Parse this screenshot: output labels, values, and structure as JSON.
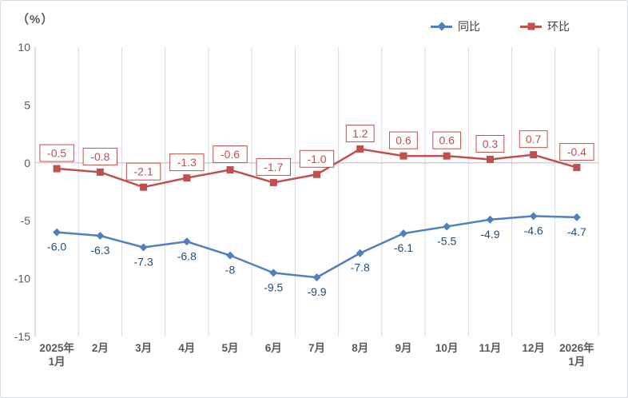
{
  "unit_label": "（%）",
  "legend": {
    "items": [
      {
        "label": "同比",
        "color": "#4F81BD",
        "marker": "diamond"
      },
      {
        "label": "环比",
        "color": "#C0504D",
        "marker": "square"
      }
    ]
  },
  "colors": {
    "tongbi_line": "#4F81BD",
    "tongbi_label": "#1F4E79",
    "huanbi_line": "#C0504D",
    "huanbi_label": "#C0504D",
    "axis_text": "#595959",
    "gridline": "#D9D9D9",
    "axis_line": "#BFBFBF",
    "label_box_fill": "#FFFFFF"
  },
  "chart_data": {
    "type": "line",
    "title": "",
    "ylabel": "（%）",
    "xlabel": "",
    "categories": [
      "2025年\n1月",
      "2月",
      "3月",
      "4月",
      "5月",
      "6月",
      "7月",
      "8月",
      "9月",
      "10月",
      "11月",
      "12月",
      "2026年\n1月"
    ],
    "series": [
      {
        "name": "同比",
        "color": "#4F81BD",
        "label_color": "#1F4E79",
        "marker": "diamond",
        "boxed_labels": false,
        "values": [
          -6.0,
          -6.3,
          -7.3,
          -6.8,
          -8,
          -9.5,
          -9.9,
          -7.8,
          -6.1,
          -5.5,
          -4.9,
          -4.6,
          -4.7
        ],
        "labels": [
          "-6.0",
          "-6.3",
          "-7.3",
          "-6.8",
          "-8",
          "-9.5",
          "-9.9",
          "-7.8",
          "-6.1",
          "-5.5",
          "-4.9",
          "-4.6",
          "-4.7"
        ]
      },
      {
        "name": "环比",
        "color": "#C0504D",
        "label_color": "#C0504D",
        "marker": "square",
        "boxed_labels": true,
        "values": [
          -0.5,
          -0.8,
          -2.1,
          -1.3,
          -0.6,
          -1.7,
          -1.0,
          1.2,
          0.6,
          0.6,
          0.3,
          0.7,
          -0.4
        ],
        "labels": [
          "-0.5",
          "-0.8",
          "-2.1",
          "-1.3",
          "-0.6",
          "-1.7",
          "-1.0",
          "1.2",
          "0.6",
          "0.6",
          "0.3",
          "0.7",
          "-0.4"
        ]
      }
    ],
    "yticks": [
      10,
      5,
      0,
      -5,
      -10,
      -15
    ],
    "ylim": [
      -15,
      10
    ],
    "grid": "vertical-only",
    "legend_position": "top-right"
  }
}
